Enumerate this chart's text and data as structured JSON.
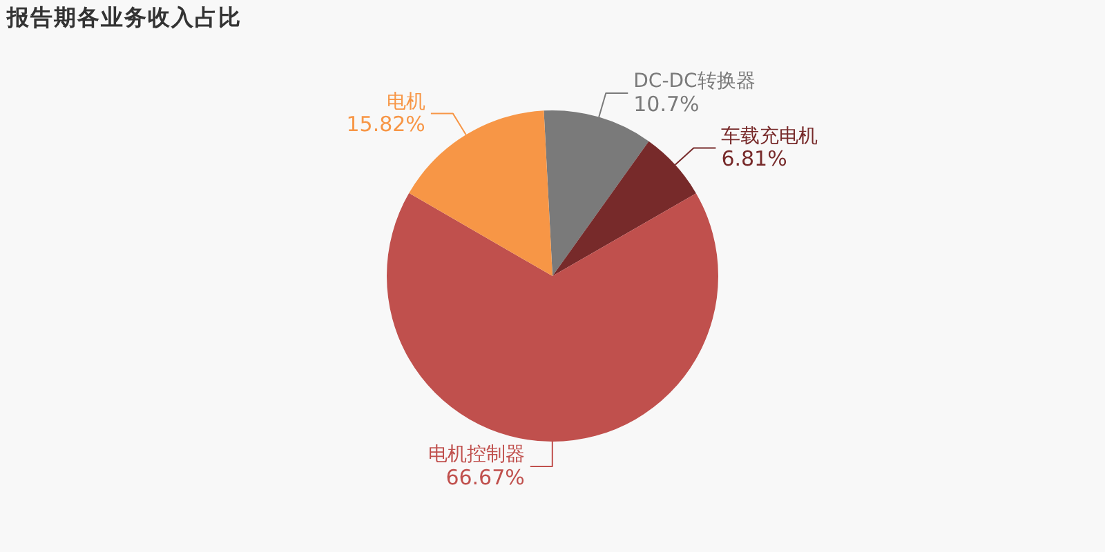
{
  "chart_data": {
    "type": "pie",
    "title": "报告期各业务收入占比",
    "categories": [
      "DC-DC转换器",
      "车载充电机",
      "电机控制器",
      "电机"
    ],
    "values": [
      10.7,
      6.81,
      66.67,
      15.82
    ],
    "colors": [
      "#7a7a7a",
      "#772a2a",
      "#c0504d",
      "#f79646"
    ],
    "value_labels": [
      "10.7%",
      "6.81%",
      "66.67%",
      "15.82%"
    ]
  }
}
